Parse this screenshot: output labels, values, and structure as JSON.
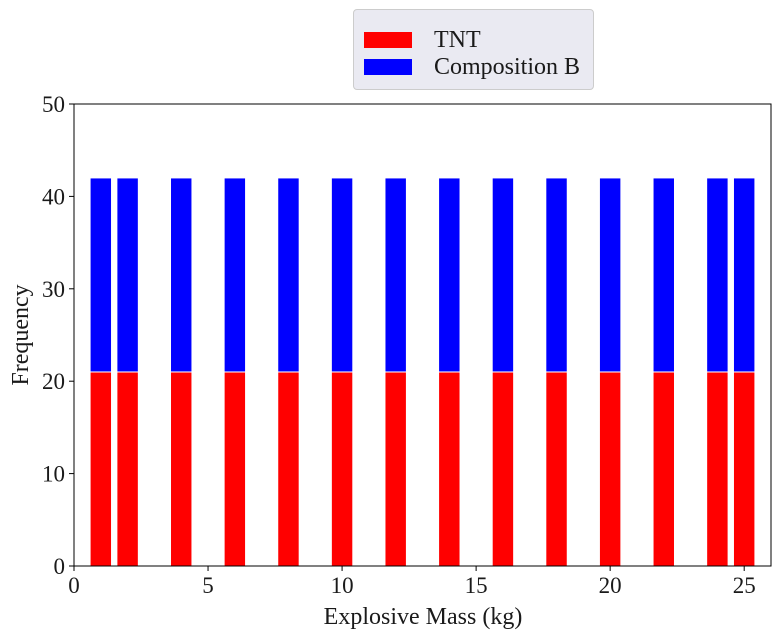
{
  "chart_data": {
    "type": "bar",
    "stacked": true,
    "title": "",
    "xlabel": "Explosive Mass (kg)",
    "ylabel": "Frequency",
    "xlim": [
      0,
      26
    ],
    "ylim": [
      0,
      50
    ],
    "xticks": [
      0,
      5,
      10,
      15,
      20,
      25
    ],
    "yticks": [
      0,
      10,
      20,
      30,
      40,
      50
    ],
    "bar_width": 0.8,
    "x": [
      1,
      2,
      4,
      6,
      8,
      10,
      12,
      14,
      16,
      18,
      20,
      22,
      24,
      25
    ],
    "series": [
      {
        "name": "TNT",
        "color": "#ff0000",
        "values": [
          21,
          21,
          21,
          21,
          21,
          21,
          21,
          21,
          21,
          21,
          21,
          21,
          21,
          21
        ]
      },
      {
        "name": "Composition B",
        "color": "#0000ff",
        "values": [
          21,
          21,
          21,
          21,
          21,
          21,
          21,
          21,
          21,
          21,
          21,
          21,
          21,
          21
        ]
      }
    ],
    "grid": false,
    "legend_position": "top-center, outside"
  }
}
